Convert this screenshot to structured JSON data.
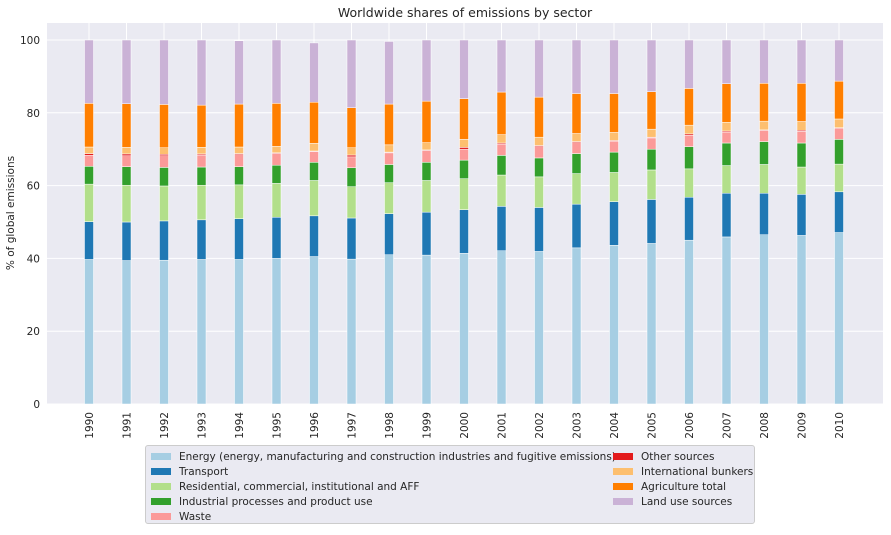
{
  "chart_data": {
    "type": "bar",
    "stacked": true,
    "title": "Worldwide shares of emissions by sector",
    "xlabel": "",
    "ylabel": "% of global emissions",
    "ylim": [
      0,
      100
    ],
    "yticks": [
      0,
      20,
      40,
      60,
      80,
      100
    ],
    "grid": true,
    "legend_position": "bottom-center",
    "categories": [
      "1990",
      "1991",
      "1992",
      "1993",
      "1994",
      "1995",
      "1996",
      "1997",
      "1998",
      "1999",
      "2000",
      "2001",
      "2002",
      "2003",
      "2004",
      "2005",
      "2006",
      "2007",
      "2008",
      "2009",
      "2010"
    ],
    "series": [
      {
        "name": "Energy (energy, manufacturing and construction industries and fugitive emissions)",
        "color": "#a6cee3",
        "values": [
          39.7,
          39.4,
          39.5,
          39.7,
          39.7,
          40.0,
          40.5,
          39.8,
          41.0,
          40.9,
          41.4,
          42.1,
          41.9,
          42.9,
          43.6,
          44.1,
          45.0,
          45.9,
          46.5,
          46.3,
          47.1
        ]
      },
      {
        "name": "Transport",
        "color": "#1f78b4",
        "values": [
          10.4,
          10.6,
          10.8,
          10.9,
          11.2,
          11.3,
          11.2,
          11.3,
          11.3,
          11.8,
          12.0,
          12.2,
          12.1,
          12.0,
          12.0,
          12.1,
          11.8,
          12.0,
          11.4,
          11.3,
          11.2
        ]
      },
      {
        "name": "Residential, commercial, institutional and AFF",
        "color": "#b2df8a",
        "values": [
          10.3,
          10.1,
          9.6,
          9.5,
          9.3,
          9.3,
          9.7,
          8.6,
          8.5,
          8.7,
          8.5,
          8.6,
          8.4,
          8.4,
          8.0,
          8.1,
          7.8,
          7.6,
          7.9,
          7.5,
          7.6
        ]
      },
      {
        "name": "Industrial processes and product use",
        "color": "#33a02c",
        "values": [
          4.9,
          5.1,
          5.1,
          5.0,
          5.0,
          5.0,
          5.0,
          5.2,
          5.0,
          5.0,
          5.1,
          5.4,
          5.2,
          5.5,
          5.6,
          5.7,
          6.1,
          6.2,
          6.3,
          6.6,
          6.8
        ]
      },
      {
        "name": "Waste",
        "color": "#fb9a99",
        "values": [
          3.0,
          3.0,
          3.2,
          3.3,
          3.3,
          3.2,
          2.9,
          3.0,
          3.2,
          3.2,
          3.0,
          3.1,
          3.1,
          3.0,
          3.0,
          3.1,
          3.1,
          3.0,
          3.0,
          3.2,
          3.0
        ]
      },
      {
        "name": "Other sources",
        "color": "#e31a1c",
        "values": [
          0.5,
          0.5,
          0.4,
          0.3,
          0.3,
          0.2,
          0.2,
          0.5,
          0.2,
          0.2,
          0.5,
          0.3,
          0.3,
          0.3,
          0.2,
          0.2,
          0.4,
          0.3,
          0.2,
          0.3,
          0.2
        ]
      },
      {
        "name": "International bunkers",
        "color": "#fdbf6f",
        "values": [
          1.8,
          1.8,
          1.8,
          1.8,
          1.8,
          1.8,
          2.1,
          2.0,
          2.0,
          2.0,
          2.2,
          2.3,
          2.3,
          2.2,
          2.2,
          2.2,
          2.4,
          2.4,
          2.4,
          2.4,
          2.4
        ]
      },
      {
        "name": "Agriculture total",
        "color": "#ff7f00",
        "values": [
          12.0,
          12.0,
          11.9,
          11.6,
          11.8,
          11.8,
          11.3,
          11.0,
          11.2,
          11.4,
          11.2,
          11.7,
          11.0,
          11.0,
          10.7,
          10.3,
          10.1,
          10.6,
          10.4,
          10.5,
          10.4
        ]
      },
      {
        "name": "Land use sources",
        "color": "#cab2d6",
        "values": [
          17.4,
          17.5,
          17.7,
          17.9,
          17.4,
          17.4,
          16.3,
          18.6,
          17.2,
          16.8,
          16.1,
          14.3,
          15.7,
          14.7,
          14.7,
          14.2,
          13.3,
          12.0,
          11.9,
          11.9,
          11.3
        ]
      }
    ]
  }
}
